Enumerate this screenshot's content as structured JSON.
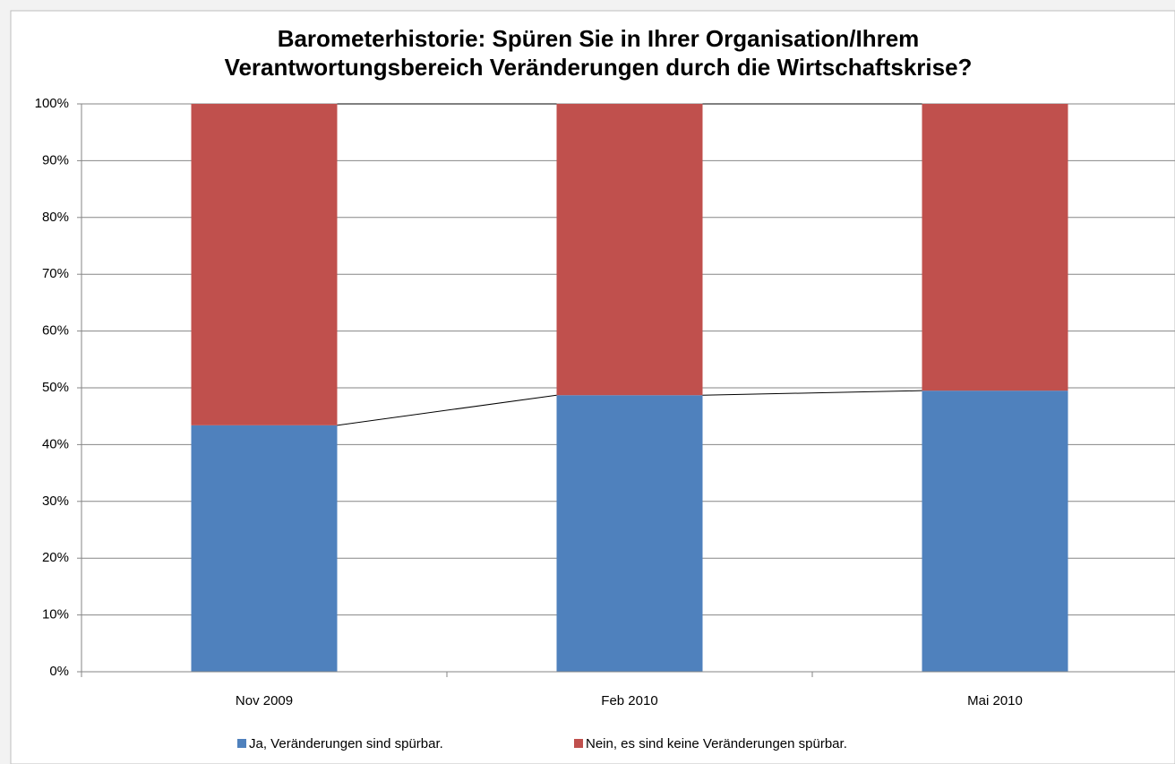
{
  "chart_data": {
    "type": "stacked_bar",
    "title": [
      "Barometerhistorie: Spüren Sie in Ihrer Organisation/Ihrem",
      "Verantwortungsbereich Veränderungen durch die Wirtschaftskrise?"
    ],
    "categories": [
      "Nov 2009",
      "Feb 2010",
      "Mai 2010"
    ],
    "series": [
      {
        "name": "Ja, Veränderungen sind spürbar.",
        "color": "#4f81bd",
        "values": [
          43.4,
          48.7,
          49.5
        ]
      },
      {
        "name": "Nein, es sind keine Veränderungen spürbar.",
        "color": "#c0504d",
        "values": [
          56.6,
          51.3,
          50.5
        ]
      }
    ],
    "ylim": [
      0,
      100
    ],
    "yticks": [
      {
        "value": 0,
        "label": "0%"
      },
      {
        "value": 10,
        "label": "10%"
      },
      {
        "value": 20,
        "label": "20%"
      },
      {
        "value": 30,
        "label": "30%"
      },
      {
        "value": 40,
        "label": "40%"
      },
      {
        "value": 50,
        "label": "50%"
      },
      {
        "value": 60,
        "label": "60%"
      },
      {
        "value": 70,
        "label": "70%"
      },
      {
        "value": 80,
        "label": "80%"
      },
      {
        "value": 90,
        "label": "90%"
      },
      {
        "value": 100,
        "label": "100%"
      }
    ],
    "grid": true,
    "series_lines": true,
    "legend": "bottom"
  }
}
